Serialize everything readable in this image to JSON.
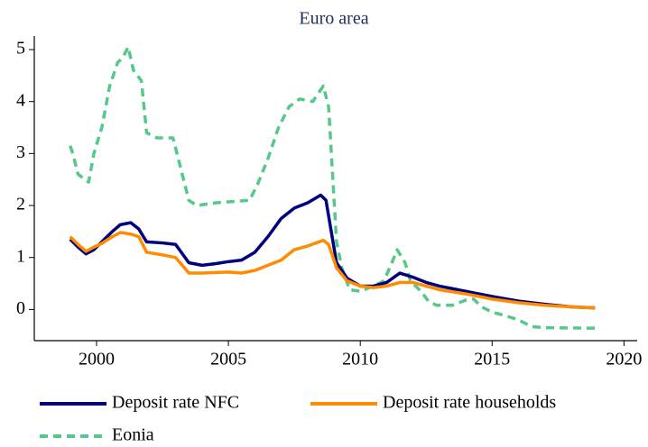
{
  "chart_data": {
    "type": "line",
    "title": "Euro area",
    "xlim": [
      1997.64,
      2020.5
    ],
    "xticks": [
      2000,
      2005,
      2010,
      2015,
      2020
    ],
    "ylim": [
      -0.6,
      5.26
    ],
    "yticks": [
      0,
      1,
      2,
      3,
      4,
      5
    ],
    "series": [
      {
        "name": "Deposit rate NFC",
        "color": "#00007f",
        "dash": false,
        "x": [
          1999.0,
          1999.3,
          1999.6,
          1999.9,
          2000.2,
          2000.6,
          2000.9,
          2001.3,
          2001.6,
          2001.9,
          2002.5,
          2003.0,
          2003.5,
          2004.0,
          2004.5,
          2005.0,
          2005.5,
          2006.0,
          2006.5,
          2007.0,
          2007.5,
          2008.0,
          2008.5,
          2008.7,
          2008.9,
          2009.1,
          2009.5,
          2010.0,
          2010.5,
          2011.0,
          2011.5,
          2012.0,
          2012.5,
          2013.0,
          2014.0,
          2015.0,
          2016.0,
          2017.0,
          2018.0,
          2018.9
        ],
        "values": [
          1.35,
          1.2,
          1.07,
          1.15,
          1.3,
          1.5,
          1.63,
          1.67,
          1.55,
          1.3,
          1.28,
          1.25,
          0.9,
          0.85,
          0.88,
          0.92,
          0.95,
          1.1,
          1.4,
          1.75,
          1.95,
          2.05,
          2.2,
          2.1,
          1.5,
          0.9,
          0.6,
          0.45,
          0.45,
          0.52,
          0.7,
          0.62,
          0.52,
          0.45,
          0.35,
          0.25,
          0.16,
          0.1,
          0.05,
          0.03
        ]
      },
      {
        "name": "Deposit rate households",
        "color": "#ff8c00",
        "dash": false,
        "x": [
          1999.0,
          1999.3,
          1999.6,
          1999.9,
          2000.2,
          2000.6,
          2000.9,
          2001.3,
          2001.6,
          2001.9,
          2002.5,
          2003.0,
          2003.5,
          2004.0,
          2005.0,
          2005.5,
          2006.0,
          2006.5,
          2007.0,
          2007.5,
          2008.0,
          2008.6,
          2008.8,
          2009.1,
          2009.5,
          2010.0,
          2010.5,
          2011.0,
          2011.5,
          2012.0,
          2012.5,
          2013.0,
          2014.0,
          2015.0,
          2016.0,
          2017.0,
          2018.0,
          2018.9
        ],
        "values": [
          1.4,
          1.25,
          1.12,
          1.2,
          1.27,
          1.4,
          1.48,
          1.45,
          1.4,
          1.1,
          1.05,
          1.0,
          0.7,
          0.7,
          0.72,
          0.7,
          0.75,
          0.85,
          0.95,
          1.15,
          1.22,
          1.33,
          1.25,
          0.8,
          0.55,
          0.45,
          0.42,
          0.45,
          0.52,
          0.52,
          0.45,
          0.38,
          0.3,
          0.2,
          0.13,
          0.08,
          0.05,
          0.03
        ]
      },
      {
        "name": "Eonia",
        "color": "#56c98a",
        "dash": true,
        "x": [
          1999.0,
          1999.1,
          1999.3,
          1999.7,
          1999.9,
          2000.2,
          2000.5,
          2000.8,
          2001.0,
          2001.2,
          2001.4,
          2001.7,
          2001.9,
          2002.3,
          2002.9,
          2003.2,
          2003.5,
          2003.8,
          2004.5,
          2005.0,
          2005.8,
          2006.1,
          2006.5,
          2006.9,
          2007.3,
          2007.7,
          2008.2,
          2008.6,
          2008.8,
          2008.95,
          2009.1,
          2009.3,
          2009.6,
          2010.0,
          2010.5,
          2010.9,
          2011.2,
          2011.4,
          2011.7,
          2011.9,
          2012.3,
          2012.6,
          2012.9,
          2013.5,
          2014.0,
          2014.3,
          2014.6,
          2015.0,
          2015.5,
          2016.0,
          2016.5,
          2017.0,
          2018.9
        ],
        "values": [
          3.15,
          3.0,
          2.6,
          2.45,
          3.0,
          3.5,
          4.3,
          4.75,
          4.85,
          5.05,
          4.6,
          4.4,
          3.4,
          3.3,
          3.3,
          2.7,
          2.1,
          2.0,
          2.05,
          2.07,
          2.1,
          2.4,
          2.9,
          3.5,
          3.9,
          4.05,
          4.0,
          4.3,
          3.9,
          2.6,
          1.3,
          0.8,
          0.38,
          0.35,
          0.45,
          0.55,
          0.9,
          1.15,
          0.9,
          0.55,
          0.35,
          0.15,
          0.08,
          0.08,
          0.18,
          0.2,
          0.05,
          -0.05,
          -0.12,
          -0.2,
          -0.33,
          -0.35,
          -0.36
        ]
      }
    ]
  }
}
